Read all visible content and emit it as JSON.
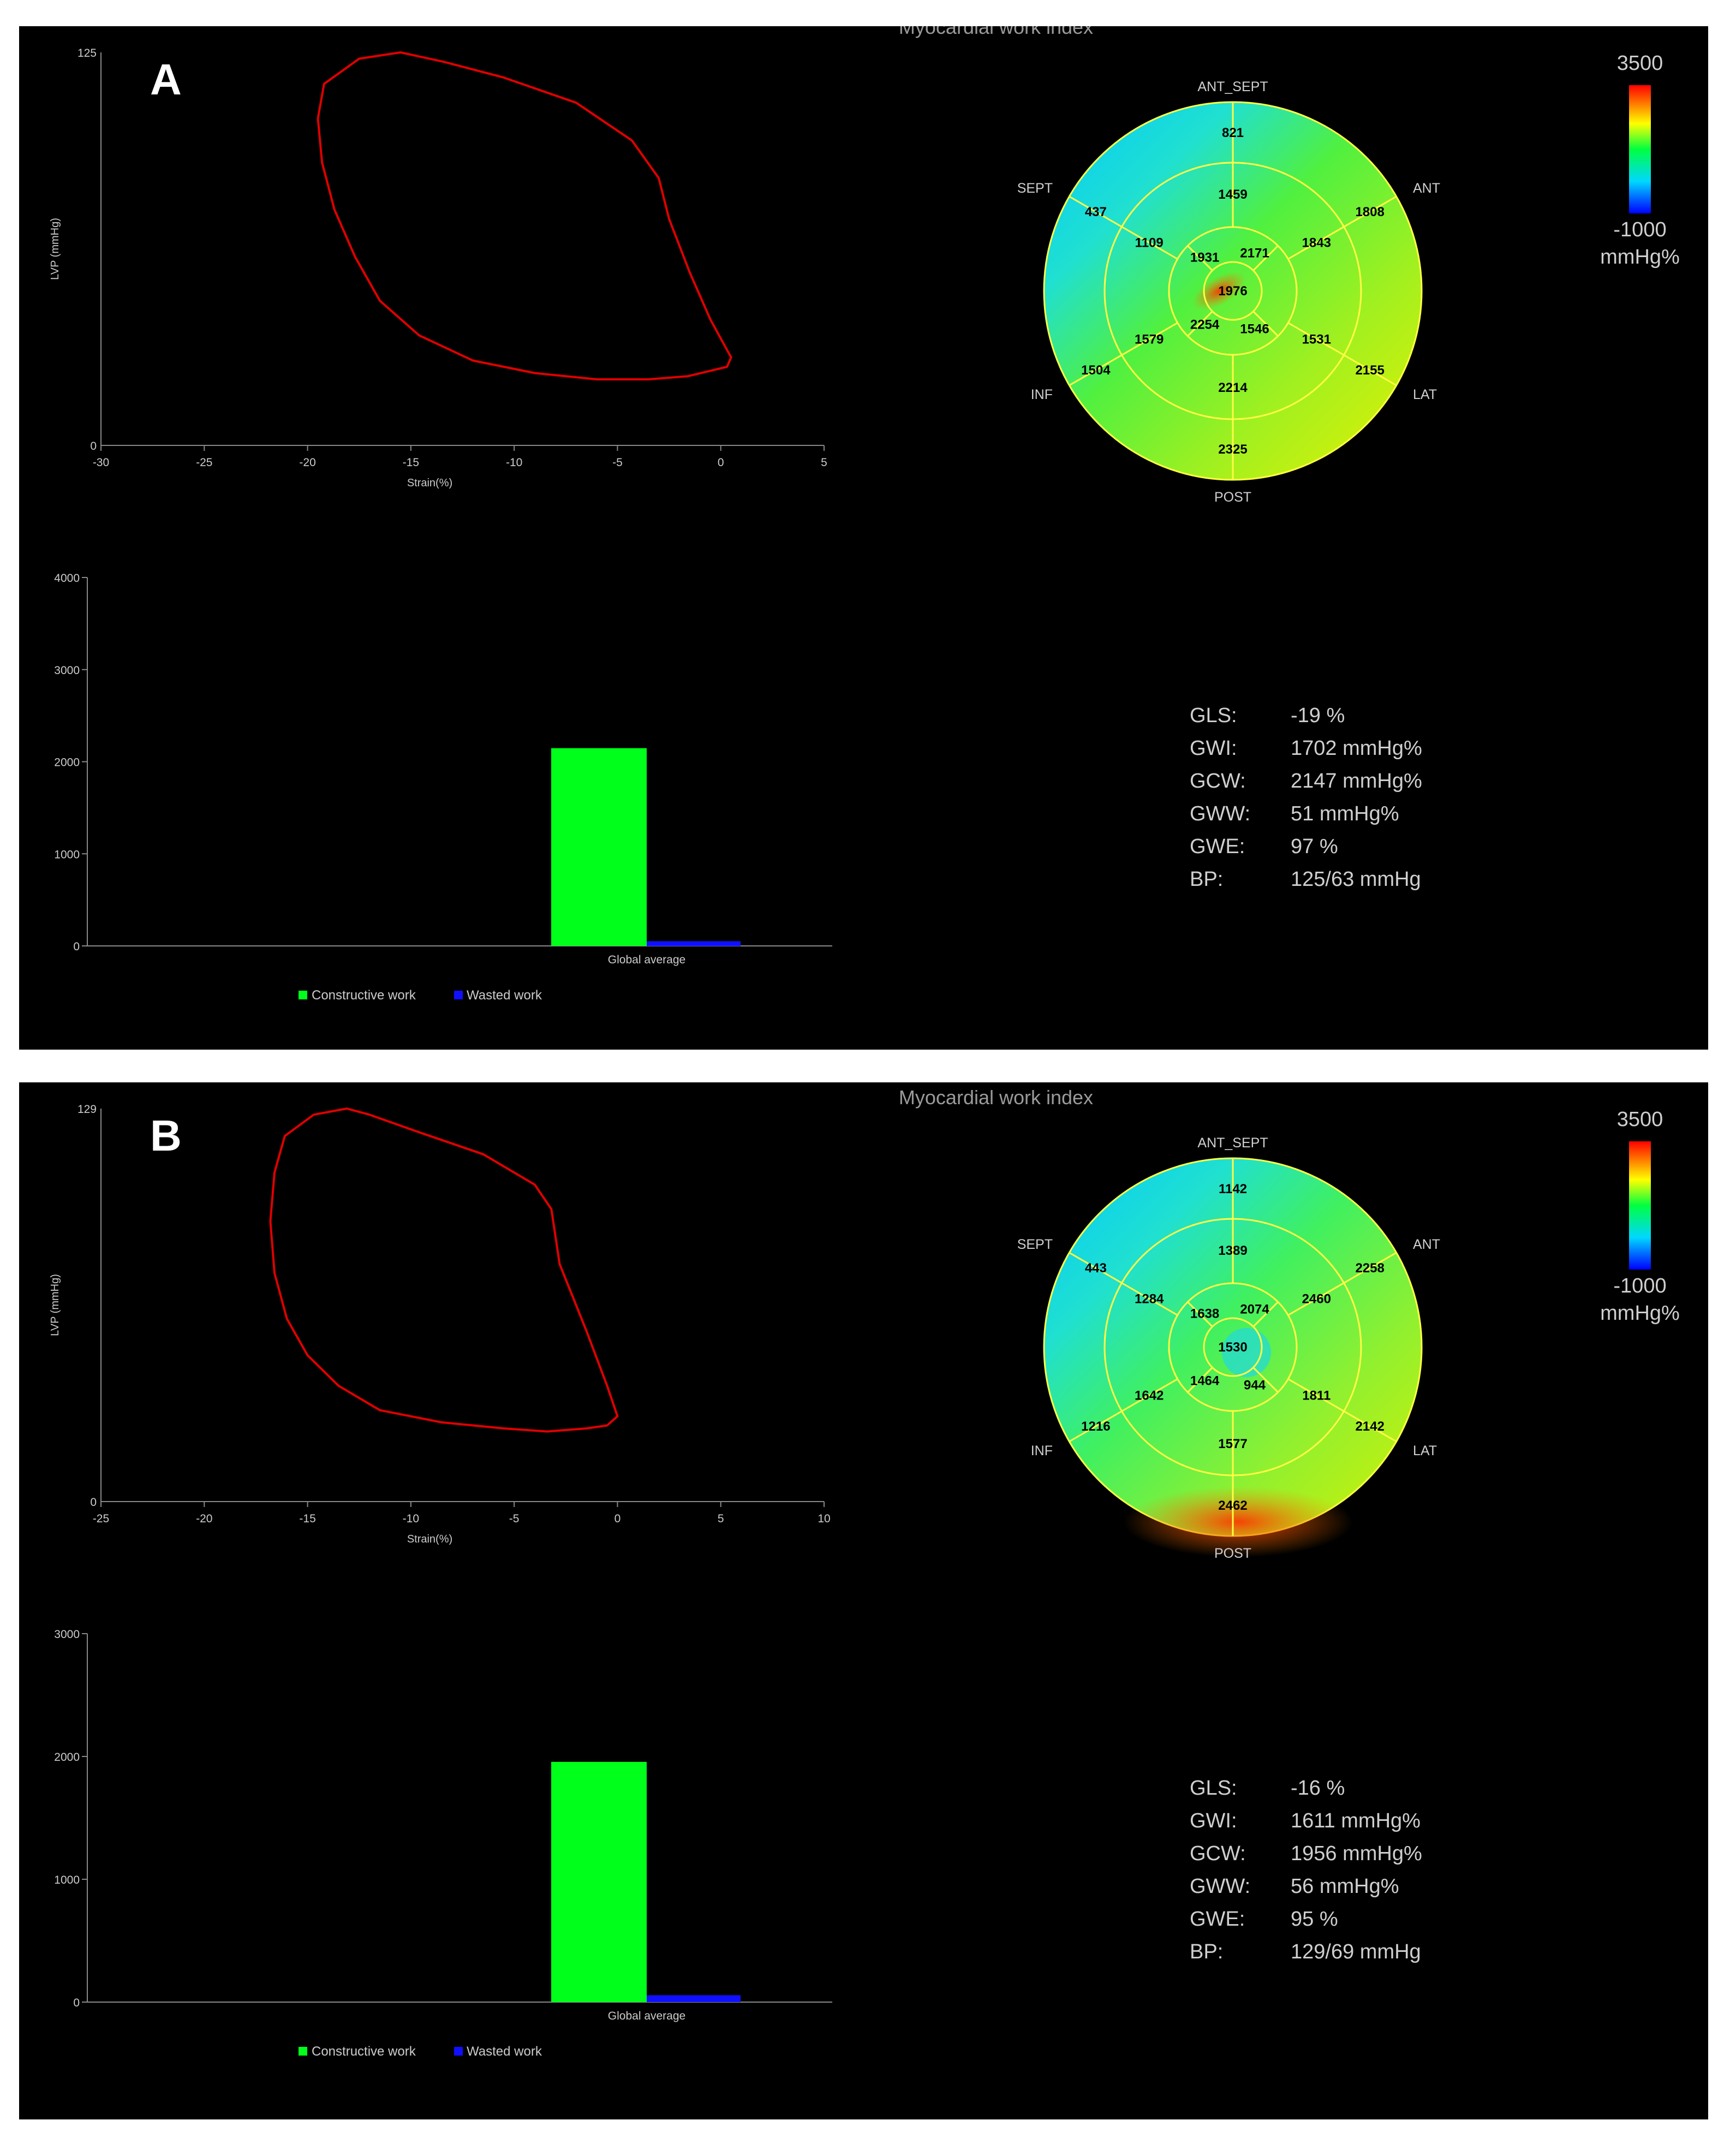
{
  "colors": {
    "loop": "#e00000",
    "constructive": "#00ff1a",
    "wasted": "#1010ff",
    "gridline": "#ffff44",
    "axis": "#888888"
  },
  "legend": {
    "constructive_label": "Constructive work",
    "wasted_label": "Wasted work"
  },
  "bullseye_walls": {
    "ant_sept": "ANT_SEPT",
    "ant": "ANT",
    "lat": "LAT",
    "post": "POST",
    "inf": "INF",
    "sept": "SEPT"
  },
  "colorbar": {
    "max_label": "3500",
    "min_label": "-1000",
    "unit": "mmHg%"
  },
  "panels": [
    {
      "label": "A",
      "title": "Myocardial work index",
      "stats": [
        {
          "name": "GLS:",
          "value": "-19 %"
        },
        {
          "name": "GWI:",
          "value": "1702 mmHg%"
        },
        {
          "name": "GCW:",
          "value": "2147 mmHg%"
        },
        {
          "name": "GWW:",
          "value": "51 mmHg%"
        },
        {
          "name": "GWE:",
          "value": "97 %"
        },
        {
          "name": "BP:",
          "value": "125/63 mmHg"
        }
      ],
      "segments": {
        "basal": [
          "821",
          "1808",
          "2155",
          "2325",
          "1504",
          "437"
        ],
        "mid": [
          "1459",
          "1843",
          "1531",
          "2214",
          "1579",
          "1109"
        ],
        "apical": [
          "2171",
          "1546",
          "2254",
          "1931"
        ],
        "apex": "1976"
      }
    },
    {
      "label": "B",
      "title": "Myocardial work index",
      "stats": [
        {
          "name": "GLS:",
          "value": "-16 %"
        },
        {
          "name": "GWI:",
          "value": "1611 mmHg%"
        },
        {
          "name": "GCW:",
          "value": "1956 mmHg%"
        },
        {
          "name": "GWW:",
          "value": "56 mmHg%"
        },
        {
          "name": "GWE:",
          "value": "95 %"
        },
        {
          "name": "BP:",
          "value": "129/69 mmHg"
        }
      ],
      "segments": {
        "basal": [
          "1142",
          "2258",
          "2142",
          "2462",
          "1216",
          "443"
        ],
        "mid": [
          "1389",
          "2460",
          "1811",
          "1577",
          "1642",
          "1284"
        ],
        "apical": [
          "2074",
          "944",
          "1464",
          "1638"
        ],
        "apex": "1530"
      }
    }
  ],
  "chart_data": [
    {
      "type": "line",
      "panel": "A",
      "xlabel": "Strain(%)",
      "ylabel": "LVP (mmHg)",
      "xlim": [
        -30,
        5
      ],
      "ylim": [
        0,
        125
      ],
      "xticks": [
        -30,
        -25,
        -20,
        -15,
        -10,
        -5,
        0,
        5
      ],
      "yticks": [
        0,
        125
      ],
      "series": [
        {
          "x": [
            -15.5,
            -17.5,
            -19.2,
            -19.5,
            -19.3,
            -18.7,
            -17.7,
            -16.5,
            -14.6,
            -12,
            -9,
            -6,
            -3.5,
            -1.6,
            0.3,
            0.5,
            -0.5,
            -1.5,
            -2.5,
            -3,
            -4.3,
            -7,
            -10.5,
            -13.4
          ],
          "y": [
            125,
            123,
            115,
            104,
            90,
            75,
            60,
            46,
            35,
            27,
            23,
            21,
            21,
            22,
            25,
            28,
            40,
            55,
            72,
            85,
            97,
            109,
            117,
            122
          ]
        }
      ]
    },
    {
      "type": "bar",
      "panel": "A",
      "categories": [
        "Global average"
      ],
      "ylim": [
        0,
        4000
      ],
      "yticks": [
        0,
        1000,
        2000,
        3000,
        4000
      ],
      "series": [
        {
          "name": "Constructive work",
          "values": [
            2147
          ]
        },
        {
          "name": "Wasted work",
          "values": [
            51
          ]
        }
      ]
    },
    {
      "type": "line",
      "panel": "B",
      "xlabel": "Strain(%)",
      "ylabel": "LVP (mmHg)",
      "xlim": [
        -25,
        10
      ],
      "ylim": [
        0,
        129
      ],
      "xticks": [
        -25,
        -20,
        -15,
        -10,
        -5,
        0,
        5,
        10
      ],
      "yticks": [
        0,
        129
      ],
      "series": [
        {
          "x": [
            -13.1,
            -14.7,
            -16.1,
            -16.6,
            -16.8,
            -16.6,
            -16,
            -15,
            -13.5,
            -11.5,
            -8.5,
            -5.5,
            -3.4,
            -1.5,
            -0.5,
            0,
            -0.5,
            -1.5,
            -2.8,
            -3.2,
            -4,
            -6.5,
            -9.5,
            -12
          ],
          "y": [
            129,
            127,
            120,
            108,
            92,
            75,
            60,
            48,
            38,
            30,
            26,
            24,
            23,
            24,
            25,
            28,
            38,
            56,
            78,
            96,
            104,
            114,
            121,
            127
          ]
        }
      ]
    },
    {
      "type": "bar",
      "panel": "B",
      "categories": [
        "Global average"
      ],
      "ylim": [
        0,
        3000
      ],
      "yticks": [
        0,
        1000,
        2000,
        3000
      ],
      "series": [
        {
          "name": "Constructive work",
          "values": [
            1956
          ]
        },
        {
          "name": "Wasted work",
          "values": [
            56
          ]
        }
      ]
    }
  ]
}
